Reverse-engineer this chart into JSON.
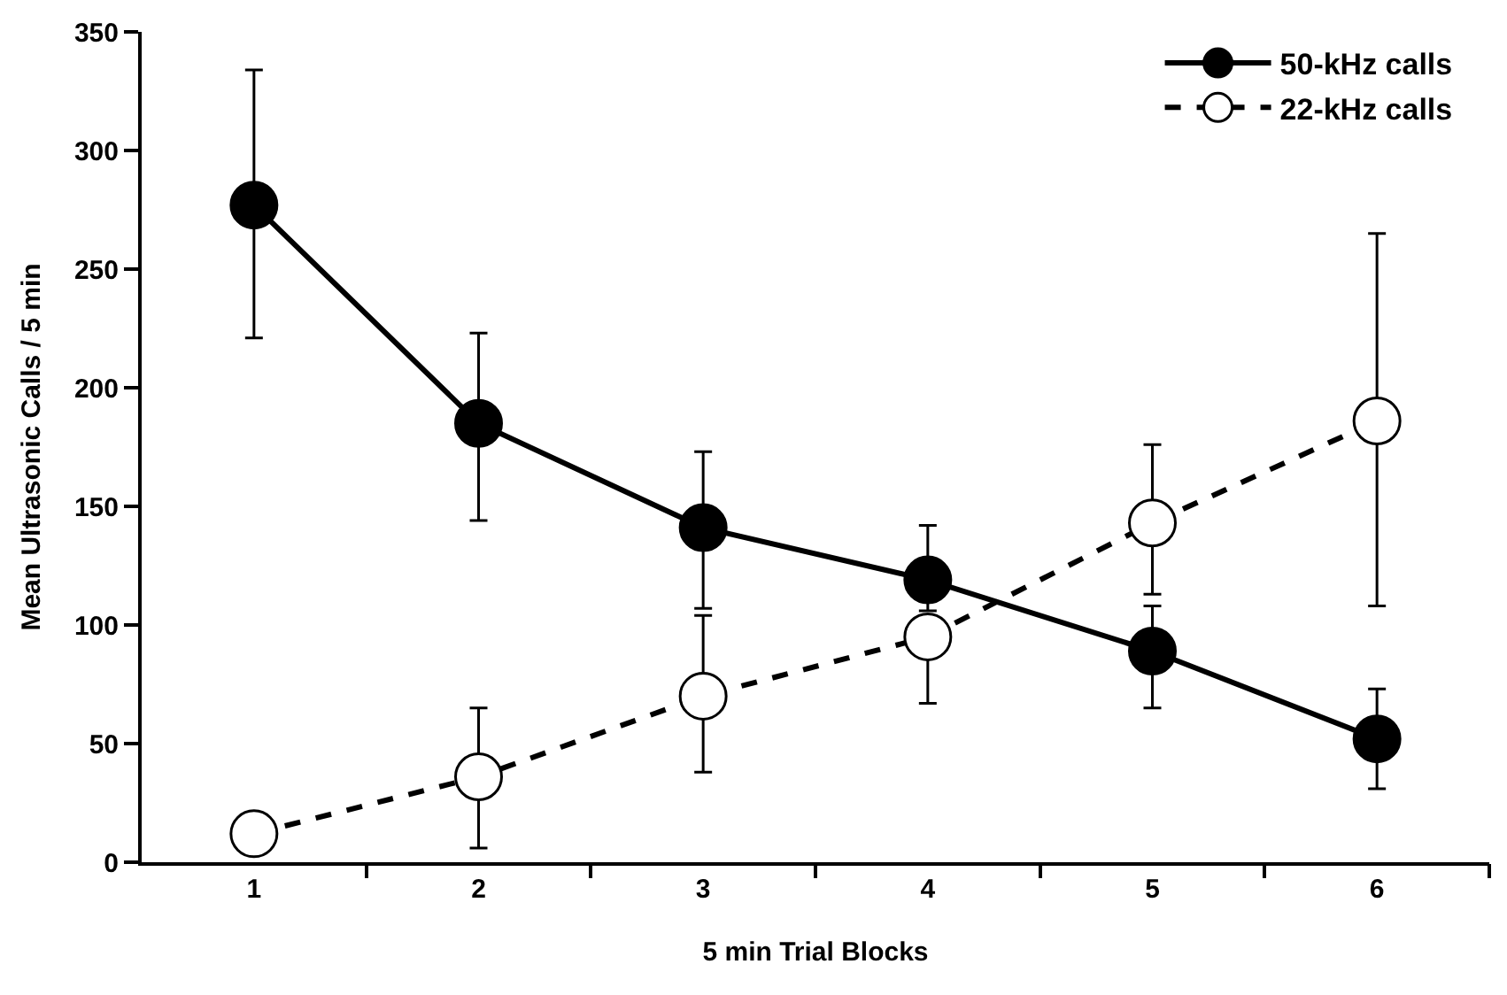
{
  "chart_data": {
    "type": "line",
    "xlabel": "5 min Trial Blocks",
    "ylabel": "Mean Ultrasonic Calls / 5 min",
    "x": [
      1,
      2,
      3,
      4,
      5,
      6
    ],
    "xlim": [
      0.5,
      6.5
    ],
    "xticks": [
      1,
      2,
      3,
      4,
      5,
      6,
      {
        "value": 1.5,
        "label": null
      },
      {
        "value": 2.5,
        "label": null
      },
      {
        "value": 3.5,
        "label": null
      },
      {
        "value": 4.5,
        "label": null
      },
      {
        "value": 5.5,
        "label": null
      },
      {
        "value": 6.5,
        "label": null
      }
    ],
    "ylim": [
      0,
      350
    ],
    "yticks": [
      0,
      50,
      100,
      150,
      200,
      250,
      300,
      350
    ],
    "legend": "top right",
    "marker": "circle",
    "series": [
      {
        "name": "50-kHz calls",
        "color": "#000000",
        "line_style": "solid",
        "values": [
          277,
          185,
          141,
          119,
          89,
          52
        ],
        "errors": [
          [
            221,
            334
          ],
          [
            144,
            223
          ],
          [
            107,
            173
          ],
          [
            106,
            142
          ],
          [
            65,
            108
          ],
          [
            31,
            73
          ]
        ]
      },
      {
        "name": "22-kHz calls",
        "color": "#000000",
        "line_style": "dashed",
        "values": [
          12,
          36,
          70,
          95,
          143,
          186
        ],
        "errors": [
          null,
          [
            6,
            65
          ],
          [
            38,
            104
          ],
          [
            67,
            95
          ],
          [
            113,
            176
          ],
          [
            108,
            265
          ]
        ]
      }
    ]
  }
}
